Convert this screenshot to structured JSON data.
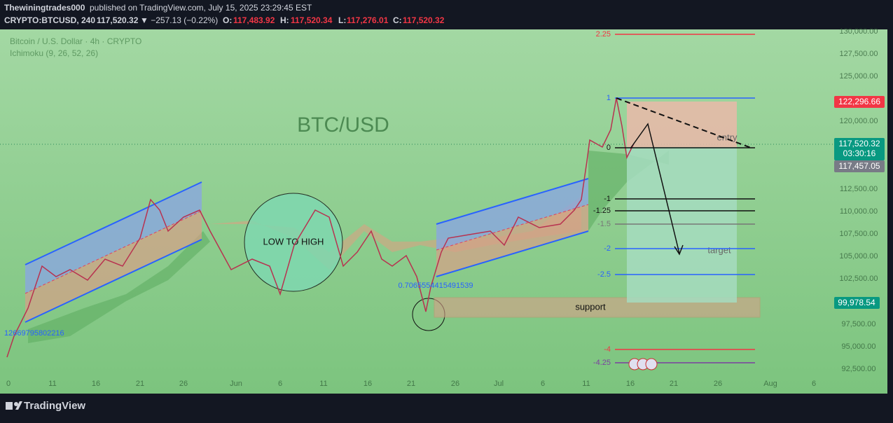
{
  "header": {
    "publisher": "Thewiningtrades000",
    "published": "published on TradingView.com, July 15, 2025 23:29:45 EST",
    "symbol": "CRYPTO:BTCUSD, 240",
    "price": "117,520.32",
    "change": "▼ −257.13 (−0.22%)",
    "open_label": "O:",
    "open": "117,483.92",
    "high_label": "H:",
    "high": "117,520.34",
    "low_label": "L:",
    "low": "117,276.01",
    "close_label": "C:",
    "close": "117,520.32"
  },
  "legend": {
    "title": "Bitcoin / U.S. Dollar · 4h · CRYPTO",
    "indicator": "Ichimoku (9, 26, 52, 26)"
  },
  "price_axis": [
    "130,000.00",
    "127,500.00",
    "125,000.00",
    "120,000.00",
    "112,500.00",
    "110,000.00",
    "107,500.00",
    "105,000.00",
    "102,500.00",
    "97,500.00",
    "95,000.00",
    "92,500.00"
  ],
  "time_axis": [
    "0",
    "11",
    "16",
    "21",
    "26",
    "Jun",
    "6",
    "11",
    "16",
    "21",
    "26",
    "Jul",
    "6",
    "11",
    "16",
    "21",
    "26",
    "Aug",
    "6"
  ],
  "fib_levels": [
    "2.25",
    "1",
    "0",
    "-1",
    "-1.25",
    "-1.5",
    "-2",
    "-2.5",
    "-4",
    "-4.25"
  ],
  "price_badges": {
    "target_high": "122,296.66",
    "last": "117,520.32",
    "countdown": "03:30:16",
    "prev": "117,457.05",
    "support": "99,978.54"
  },
  "annotations": {
    "watermark": "BTC/USD",
    "circle": "LOW TO HIGH",
    "support": "support",
    "entry": "entry",
    "target": "target",
    "ratio_right": "0.7065554415491539",
    "ratio_left": "12669795802216"
  },
  "footer": {
    "brand": "TradingView"
  }
}
